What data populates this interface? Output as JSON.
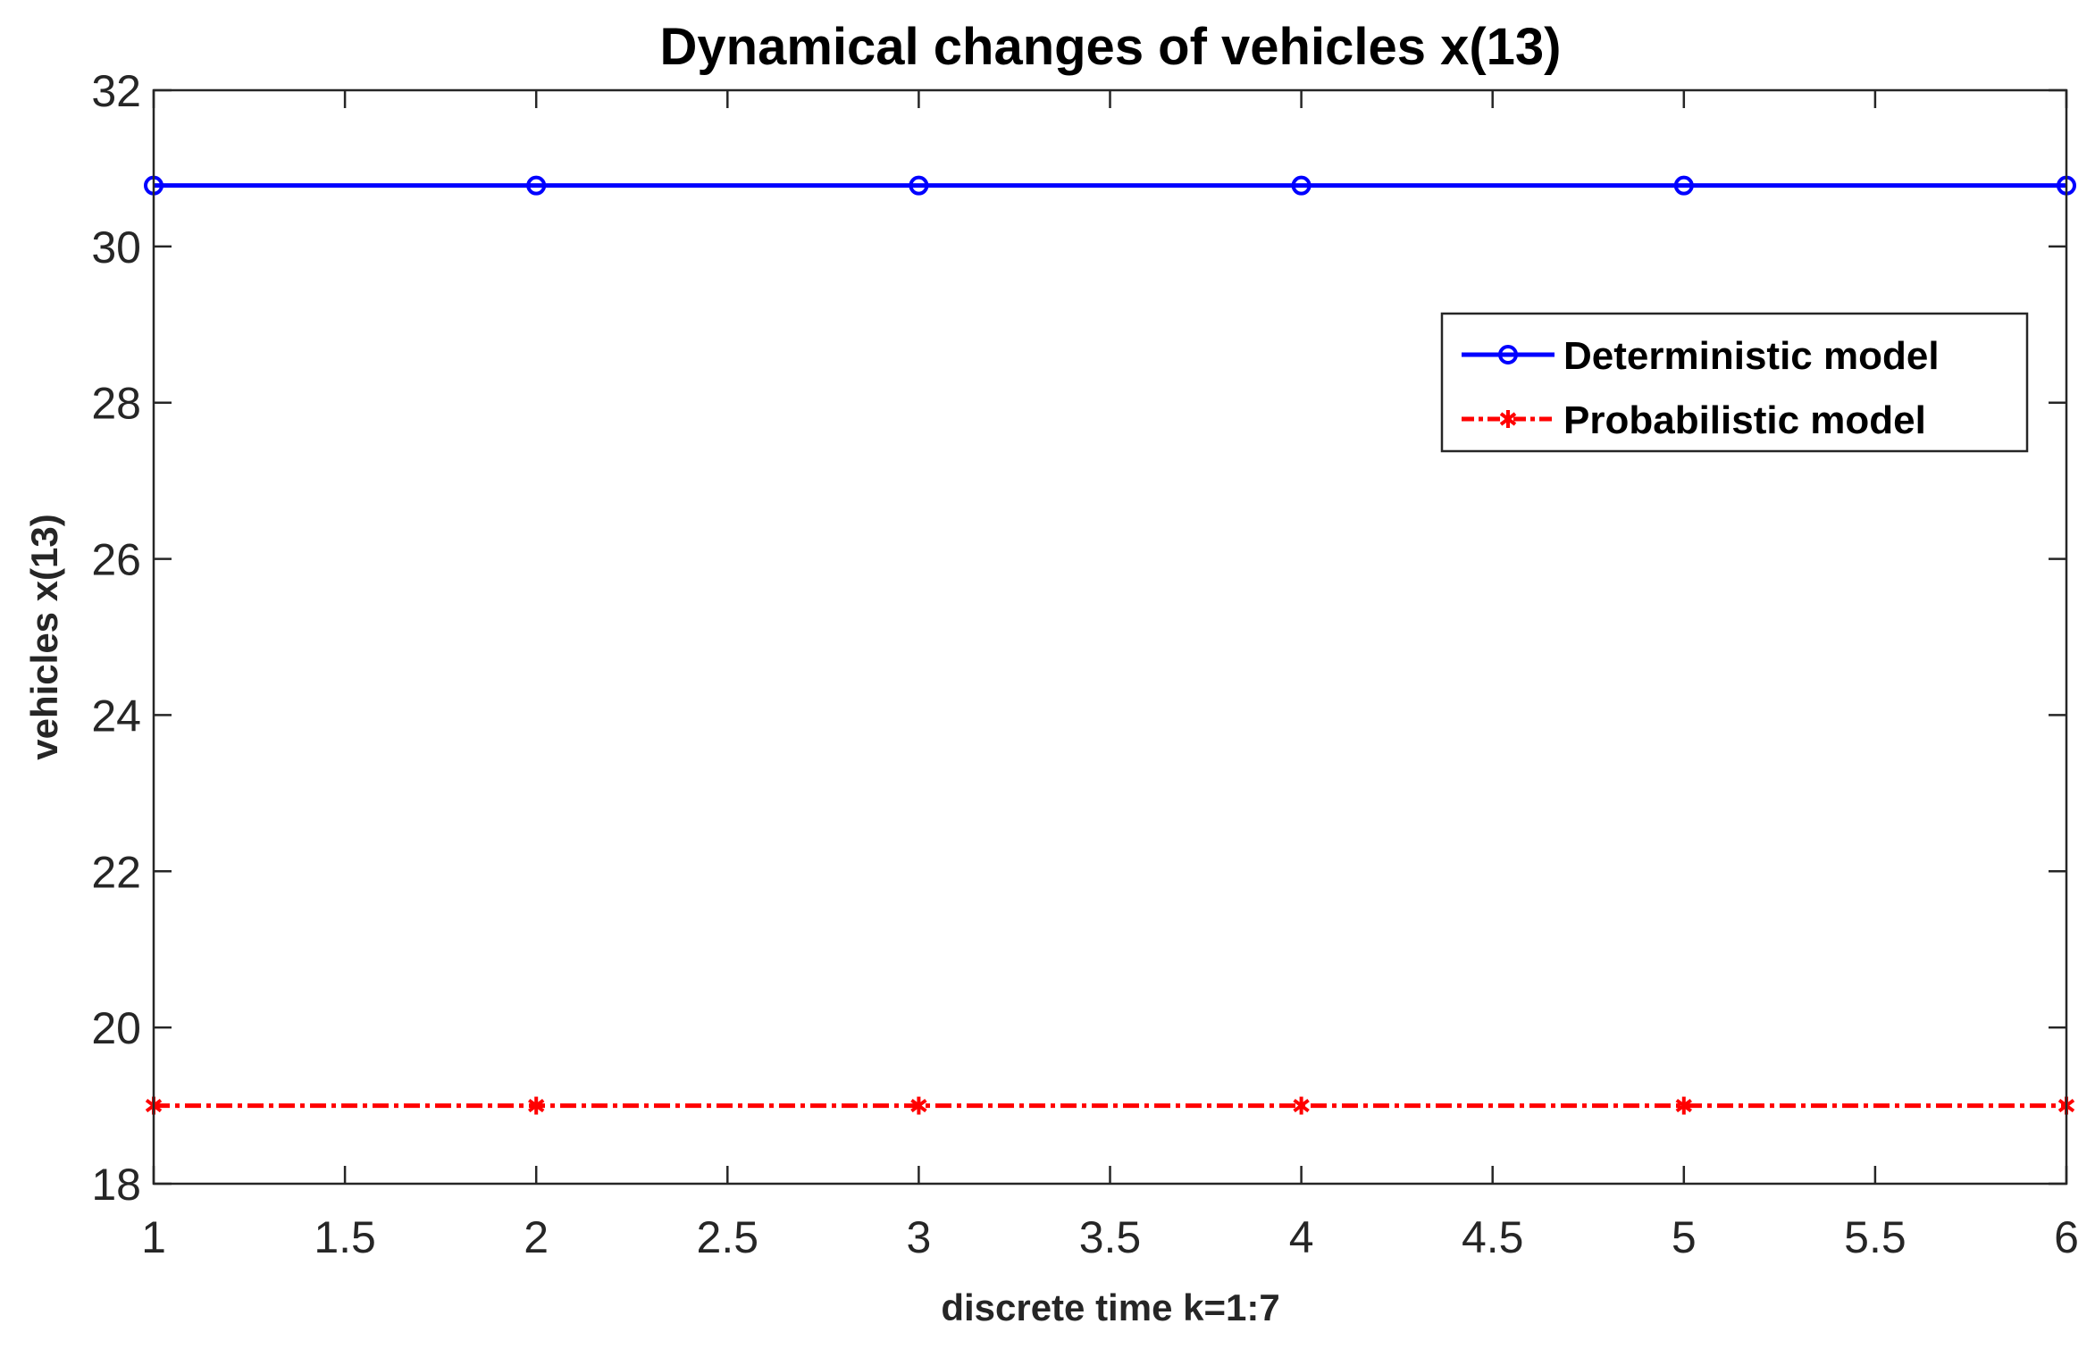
{
  "chart_data": {
    "type": "line",
    "title": "Dynamical changes of vehicles x(13)",
    "xlabel": "discrete time k=1:7",
    "ylabel": "vehicles x(13)",
    "xlim": [
      1,
      6
    ],
    "ylim": [
      18,
      32
    ],
    "xticks": [
      1,
      1.5,
      2,
      2.5,
      3,
      3.5,
      4,
      4.5,
      5,
      5.5,
      6
    ],
    "xtick_labels": [
      "1",
      "1.5",
      "2",
      "2.5",
      "3",
      "3.5",
      "4",
      "4.5",
      "5",
      "5.5",
      "6"
    ],
    "yticks": [
      18,
      20,
      22,
      24,
      26,
      28,
      30,
      32
    ],
    "ytick_labels": [
      "18",
      "20",
      "22",
      "24",
      "26",
      "28",
      "30",
      "32"
    ],
    "grid": false,
    "legend_position": "top-right",
    "x": [
      1,
      2,
      3,
      4,
      5,
      6
    ],
    "series": [
      {
        "name": "Deterministic model",
        "values": [
          30.78,
          30.78,
          30.78,
          30.78,
          30.78,
          30.78
        ],
        "color": "#0000ff",
        "style": "solid",
        "marker": "circle"
      },
      {
        "name": "Probabilistic model",
        "values": [
          19.0,
          19.0,
          19.0,
          19.0,
          19.0,
          19.0
        ],
        "color": "#ff0000",
        "style": "dash-dot",
        "marker": "asterisk"
      }
    ]
  }
}
